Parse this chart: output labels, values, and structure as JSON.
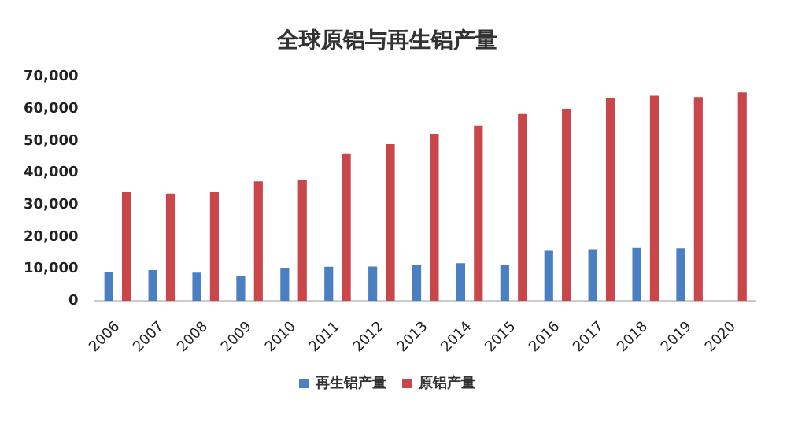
{
  "chart_data": {
    "type": "bar",
    "title": "全球原铝与再生铝产量",
    "categories": [
      "2006",
      "2007",
      "2008",
      "2009",
      "2010",
      "2011",
      "2012",
      "2013",
      "2014",
      "2015",
      "2016",
      "2017",
      "2018",
      "2019",
      "2020"
    ],
    "series": [
      {
        "name": "再生铝产量",
        "color": "#4a7fc1",
        "values": [
          9000,
          9700,
          8900,
          7800,
          10200,
          10700,
          10800,
          11200,
          11800,
          11200,
          15700,
          16200,
          16600,
          16500,
          null
        ]
      },
      {
        "name": "原铝产量",
        "color": "#c9474a",
        "values": [
          34000,
          33600,
          34000,
          37400,
          37900,
          46100,
          49000,
          52200,
          54700,
          58400,
          60000,
          63400,
          64100,
          63700,
          65200
        ]
      }
    ],
    "ylim": [
      0,
      70000
    ],
    "yticks": [
      {
        "value": 0,
        "label": "0"
      },
      {
        "value": 10000,
        "label": "10,000"
      },
      {
        "value": 20000,
        "label": "20,000"
      },
      {
        "value": 30000,
        "label": "30,000"
      },
      {
        "value": 40000,
        "label": "40,000"
      },
      {
        "value": 50000,
        "label": "50,000"
      },
      {
        "value": 60000,
        "label": "60,000"
      },
      {
        "value": 70000,
        "label": "70,000"
      }
    ],
    "grid": false,
    "legend": "bottom"
  }
}
